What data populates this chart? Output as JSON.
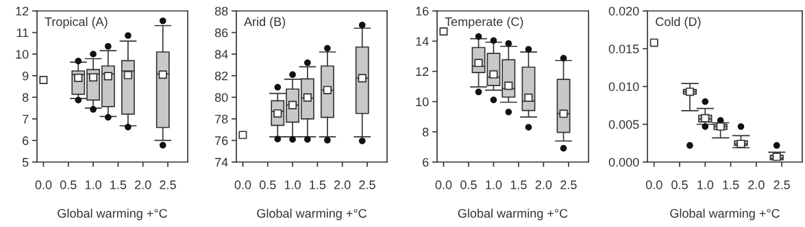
{
  "chart_data": [
    {
      "type": "box",
      "title": "Tropical (A)",
      "xlabel": "Global warming +°C",
      "xlim": [
        -0.13,
        2.9
      ],
      "xticks": [
        {
          "value": 0,
          "label": "0.0"
        },
        {
          "value": 0.5,
          "label": "0.5"
        },
        {
          "value": 1,
          "label": "1.0"
        },
        {
          "value": 1.5,
          "label": "1.5"
        },
        {
          "value": 2,
          "label": "2.0"
        },
        {
          "value": 2.5,
          "label": "2.5"
        }
      ],
      "ylim": [
        5,
        12
      ],
      "yticks": [
        5,
        6,
        7,
        8,
        9,
        10,
        11,
        12
      ],
      "grid": false,
      "series": [
        {
          "type": "box",
          "color": "#c8c8c8",
          "x": [
            0.7,
            1.0,
            1.3,
            1.7,
            2.4
          ],
          "boxes": [
            {
              "low": 7.94,
              "q1": 8.14,
              "median": 9.05,
              "q3": 9.22,
              "high": 9.63,
              "mean": 8.9,
              "outliers": [
                9.68,
                7.87
              ]
            },
            {
              "low": 7.5,
              "q1": 7.87,
              "median": 9.08,
              "q3": 9.29,
              "high": 9.79,
              "mean": 8.92,
              "outliers": [
                10.0,
                7.44
              ]
            },
            {
              "low": 7.11,
              "q1": 7.57,
              "median": 9.08,
              "q3": 9.45,
              "high": 10.16,
              "mean": 8.98,
              "outliers": [
                10.36,
                7.07
              ]
            },
            {
              "low": 6.68,
              "q1": 7.22,
              "median": 9.22,
              "q3": 9.7,
              "high": 10.6,
              "mean": 9.03,
              "outliers": [
                10.86,
                6.62
              ]
            },
            {
              "low": 6.0,
              "q1": 6.6,
              "median": 9.08,
              "q3": 10.1,
              "high": 11.32,
              "mean": 9.05,
              "outliers": [
                11.54,
                5.78
              ]
            }
          ]
        },
        {
          "type": "scatter",
          "color": "#ffffff",
          "marker": "square",
          "x": [
            0.0
          ],
          "values": [
            8.8
          ]
        }
      ]
    },
    {
      "type": "box",
      "title": "Arid (B)",
      "xlabel": "Global warming +°C",
      "xlim": [
        -0.13,
        2.9
      ],
      "xticks": [
        {
          "value": 0,
          "label": "0.0"
        },
        {
          "value": 0.5,
          "label": "0.5"
        },
        {
          "value": 1,
          "label": "1.0"
        },
        {
          "value": 1.5,
          "label": "1.5"
        },
        {
          "value": 2,
          "label": "2.0"
        },
        {
          "value": 2.5,
          "label": "2.5"
        }
      ],
      "ylim": [
        74,
        88
      ],
      "yticks": [
        74,
        76,
        78,
        80,
        82,
        84,
        86,
        88
      ],
      "grid": false,
      "series": [
        {
          "type": "box",
          "color": "#c8c8c8",
          "x": [
            0.7,
            1.0,
            1.3,
            1.7,
            2.4
          ],
          "boxes": [
            {
              "low": 76.34,
              "q1": 77.4,
              "median": 78.7,
              "q3": 79.68,
              "high": 80.36,
              "mean": 78.5,
              "outliers": [
                80.93,
                76.13
              ]
            },
            {
              "low": 76.34,
              "q1": 77.7,
              "median": 79.28,
              "q3": 80.76,
              "high": 81.67,
              "mean": 79.28,
              "outliers": [
                82.1,
                76.1
              ]
            },
            {
              "low": 76.34,
              "q1": 78.0,
              "median": 79.93,
              "q3": 81.7,
              "high": 82.83,
              "mean": 79.98,
              "outliers": [
                83.2,
                76.1
              ]
            },
            {
              "low": 76.34,
              "q1": 78.14,
              "median": 80.67,
              "q3": 82.9,
              "high": 84.2,
              "mean": 80.67,
              "outliers": [
                84.54,
                76.03
              ]
            },
            {
              "low": 76.34,
              "q1": 78.5,
              "median": 81.77,
              "q3": 84.66,
              "high": 86.4,
              "mean": 81.77,
              "outliers": [
                86.69,
                75.96
              ]
            }
          ]
        },
        {
          "type": "scatter",
          "color": "#ffffff",
          "marker": "square",
          "x": [
            0.0
          ],
          "values": [
            76.51
          ]
        }
      ]
    },
    {
      "type": "box",
      "title": "Temperate (C)",
      "xlabel": "Global warming +°C",
      "xlim": [
        -0.13,
        2.9
      ],
      "xticks": [
        {
          "value": 0,
          "label": "0.0"
        },
        {
          "value": 0.5,
          "label": "0.5"
        },
        {
          "value": 1,
          "label": "1.0"
        },
        {
          "value": 1.5,
          "label": "1.5"
        },
        {
          "value": 2,
          "label": "2.0"
        },
        {
          "value": 2.5,
          "label": "2.5"
        }
      ],
      "ylim": [
        6,
        16
      ],
      "yticks": [
        6,
        8,
        10,
        12,
        14,
        16
      ],
      "grid": false,
      "series": [
        {
          "type": "box",
          "color": "#c8c8c8",
          "x": [
            0.7,
            1.0,
            1.3,
            1.7,
            2.4
          ],
          "boxes": [
            {
              "low": 10.97,
              "q1": 11.92,
              "median": 12.34,
              "q3": 13.58,
              "high": 14.16,
              "mean": 12.56,
              "outliers": [
                14.31,
                10.64
              ]
            },
            {
              "low": 10.76,
              "q1": 11.06,
              "median": 11.62,
              "q3": 13.19,
              "high": 13.93,
              "mean": 11.8,
              "outliers": [
                14.04,
                10.11
              ]
            },
            {
              "low": 9.96,
              "q1": 10.3,
              "median": 10.86,
              "q3": 12.77,
              "high": 13.66,
              "mean": 11.05,
              "outliers": [
                13.84,
                9.31
              ]
            },
            {
              "low": 8.98,
              "q1": 9.41,
              "median": 10.03,
              "q3": 12.28,
              "high": 13.28,
              "mean": 10.26,
              "outliers": [
                13.46,
                8.3
              ]
            },
            {
              "low": 7.39,
              "q1": 7.96,
              "median": 9.2,
              "q3": 11.47,
              "high": 12.72,
              "mean": 9.2,
              "outliers": [
                12.87,
                6.91
              ]
            }
          ]
        },
        {
          "type": "scatter",
          "color": "#ffffff",
          "marker": "square",
          "x": [
            0.0
          ],
          "values": [
            14.64
          ]
        }
      ]
    },
    {
      "type": "box",
      "title": "Cold (D)",
      "xlabel": "Global warming +°C",
      "xlim": [
        -0.13,
        2.9
      ],
      "xticks": [
        {
          "value": 0,
          "label": "0.0"
        },
        {
          "value": 0.5,
          "label": "0.5"
        },
        {
          "value": 1,
          "label": "1.0"
        },
        {
          "value": 1.5,
          "label": "1.5"
        },
        {
          "value": 2,
          "label": "2.0"
        },
        {
          "value": 2.5,
          "label": "2.5"
        }
      ],
      "ylim": [
        0,
        0.02
      ],
      "yticks": [
        {
          "value": 0,
          "label": "0.000"
        },
        {
          "value": 0.005,
          "label": "0.005"
        },
        {
          "value": 0.01,
          "label": "0.010"
        },
        {
          "value": 0.015,
          "label": "0.015"
        },
        {
          "value": 0.02,
          "label": "0.020"
        }
      ],
      "grid": false,
      "series": [
        {
          "type": "box",
          "color": "#c8c8c8",
          "x": [
            0.7,
            1.0,
            1.3,
            1.7,
            2.4
          ],
          "boxes": [
            {
              "low": 0.0068,
              "q1": 0.009,
              "median": 0.0093,
              "q3": 0.0096,
              "high": 0.0104,
              "mean": 0.0093,
              "outliers": [
                0.0022
              ]
            },
            {
              "low": 0.005,
              "q1": 0.0053,
              "median": 0.0057,
              "q3": 0.0062,
              "high": 0.0071,
              "mean": 0.0058,
              "outliers": [
                0.008,
                0.0047
              ]
            },
            {
              "low": 0.0032,
              "q1": 0.0043,
              "median": 0.0047,
              "q3": 0.005,
              "high": 0.0052,
              "mean": 0.0047,
              "outliers": [
                0.0055
              ]
            },
            {
              "low": 0.0019,
              "q1": 0.0022,
              "median": 0.0024,
              "q3": 0.0028,
              "high": 0.0035,
              "mean": 0.0024,
              "outliers": [
                0.0047
              ]
            },
            {
              "low": 0.0003,
              "q1": 0.0003,
              "median": 0.0005,
              "q3": 0.0009,
              "high": 0.0013,
              "mean": 0.0007,
              "outliers": [
                0.0022
              ]
            }
          ]
        },
        {
          "type": "scatter",
          "color": "#ffffff",
          "marker": "square",
          "x": [
            0.0
          ],
          "values": [
            0.0158
          ]
        }
      ]
    }
  ]
}
